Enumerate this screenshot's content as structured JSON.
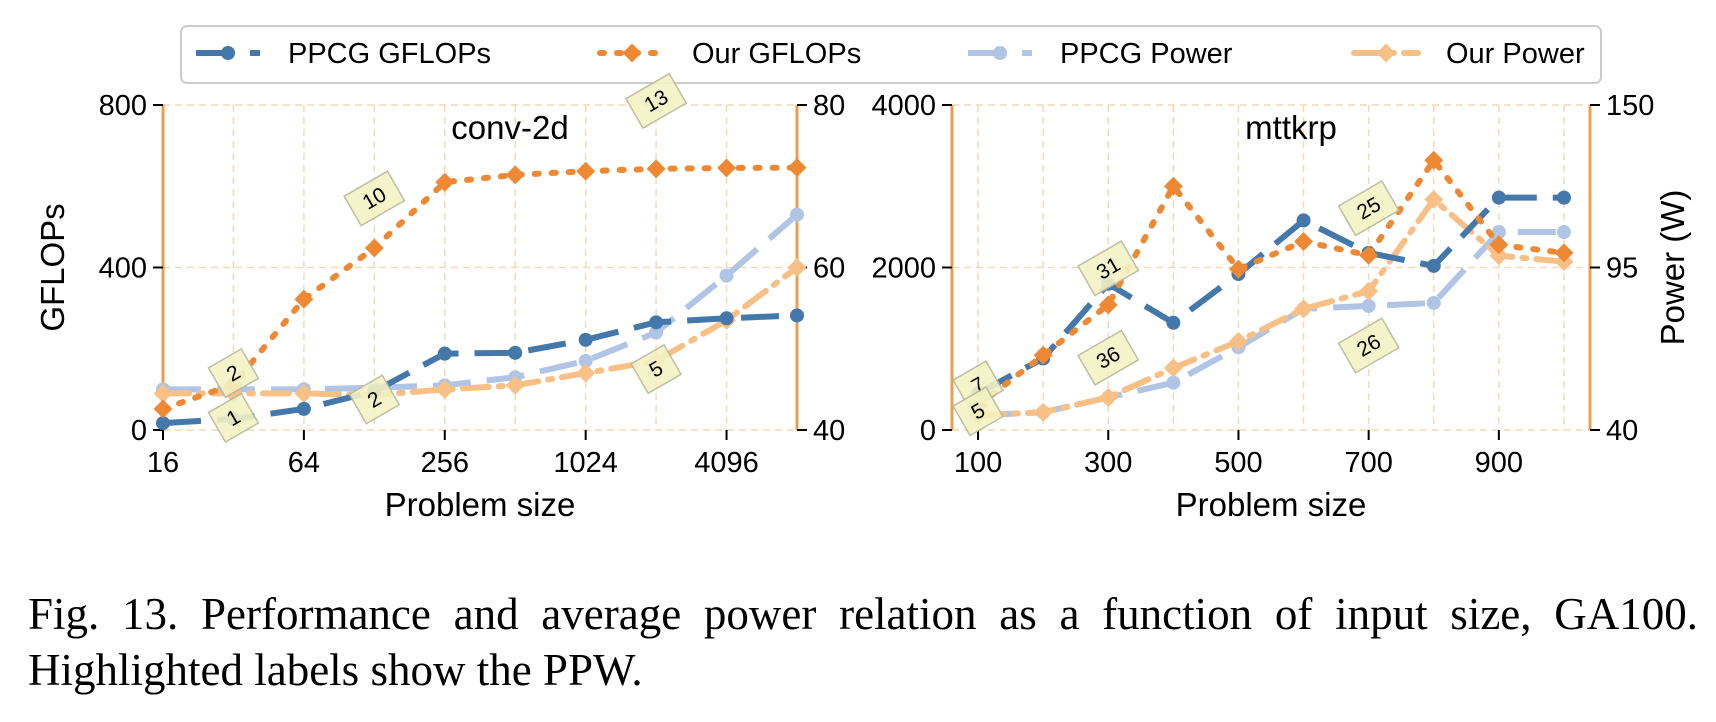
{
  "legend": [
    {
      "label": "PPCG GFLOPs",
      "color": "#4477aa",
      "marker": "circle",
      "dash": "long"
    },
    {
      "label": "Our GFLOPs",
      "color": "#ee8833",
      "marker": "diamond",
      "dash": "dot"
    },
    {
      "label": "PPCG Power",
      "color": "#b0c4e6",
      "marker": "circle",
      "dash": "long"
    },
    {
      "label": "Our Power",
      "color": "#f8c084",
      "marker": "diamond",
      "dash": "dashdot"
    }
  ],
  "caption": "Fig. 13.  Performance and average power relation as a function of input size, GA100. Highlighted labels show the PPW.",
  "chart_data": [
    {
      "type": "line",
      "title": "conv-2d",
      "xlabel": "Problem size",
      "ylabel": "GFLOPs",
      "y2label": "",
      "x_scale": "log2",
      "x": [
        16,
        32,
        64,
        128,
        256,
        512,
        1024,
        2048,
        4096,
        8192
      ],
      "xticks": [
        "16",
        "64",
        "256",
        "1024",
        "4096"
      ],
      "xtick_values": [
        16,
        64,
        256,
        1024,
        4096
      ],
      "ylim": [
        0,
        800
      ],
      "yticks": [
        0,
        400,
        800
      ],
      "y2lim": [
        40,
        80
      ],
      "y2ticks": [
        40,
        60,
        80
      ],
      "grid": true,
      "series": [
        {
          "name": "PPCG GFLOPs",
          "axis": "left",
          "values": [
            17,
            27,
            52,
            95,
            188,
            190,
            222,
            265,
            275,
            282
          ]
        },
        {
          "name": "Our GFLOPs",
          "axis": "left",
          "values": [
            52,
            112,
            322,
            448,
            610,
            628,
            637,
            643,
            645,
            646
          ]
        },
        {
          "name": "PPCG Power",
          "axis": "right",
          "values": [
            45.0,
            45.0,
            45.0,
            45.2,
            45.5,
            46.5,
            48.5,
            52.0,
            59.0,
            66.5
          ]
        },
        {
          "name": "Our Power",
          "axis": "right",
          "values": [
            44.5,
            44.5,
            44.5,
            44.3,
            45.0,
            45.5,
            47.0,
            48.5,
            53.5,
            60.0
          ]
        }
      ],
      "annotations": [
        {
          "text": "2",
          "x": 32,
          "y": 140
        },
        {
          "text": "1",
          "x": 32,
          "y": 30
        },
        {
          "text": "2",
          "x": 128,
          "y": 75
        },
        {
          "text": "10",
          "x": 128,
          "y": 570
        },
        {
          "text": "13",
          "x": 2048,
          "y": 810
        },
        {
          "text": "5",
          "x": 2048,
          "y": 150
        }
      ]
    },
    {
      "type": "line",
      "title": "mttkrp",
      "xlabel": "Problem size",
      "ylabel": "",
      "y2label": "Power (W)",
      "x_scale": "linear",
      "x": [
        100,
        200,
        300,
        400,
        500,
        600,
        700,
        800,
        900,
        1000
      ],
      "xticks": [
        "100",
        "300",
        "500",
        "700",
        "900"
      ],
      "xtick_values": [
        100,
        300,
        500,
        700,
        900
      ],
      "ylim": [
        0,
        4000
      ],
      "yticks": [
        0,
        2000,
        4000
      ],
      "y2lim": [
        40,
        150
      ],
      "y2ticks": [
        40,
        95,
        150
      ],
      "grid": true,
      "series": [
        {
          "name": "PPCG GFLOPs",
          "axis": "left",
          "values": [
            450,
            880,
            1800,
            1320,
            1920,
            2580,
            2180,
            2020,
            2860,
            2860
          ]
        },
        {
          "name": "Our GFLOPs",
          "axis": "left",
          "values": [
            300,
            920,
            1540,
            3000,
            1980,
            2320,
            2150,
            3320,
            2280,
            2180
          ]
        },
        {
          "name": "PPCG Power",
          "axis": "right",
          "values": [
            45.0,
            46.0,
            51.0,
            56.0,
            68.0,
            81.0,
            82.0,
            83.0,
            107.0,
            107.0
          ]
        },
        {
          "name": "Our Power",
          "axis": "right",
          "values": [
            45.0,
            46.0,
            51.0,
            61.0,
            70.0,
            81.0,
            87.0,
            118.0,
            99.0,
            97.0
          ]
        }
      ],
      "annotations": [
        {
          "text": "7",
          "x": 100,
          "y": 550
        },
        {
          "text": "5",
          "x": 100,
          "y": 230
        },
        {
          "text": "31",
          "x": 300,
          "y": 1990
        },
        {
          "text": "36",
          "x": 300,
          "y": 890
        },
        {
          "text": "25",
          "x": 700,
          "y": 2730
        },
        {
          "text": "26",
          "x": 700,
          "y": 1040
        }
      ]
    }
  ]
}
